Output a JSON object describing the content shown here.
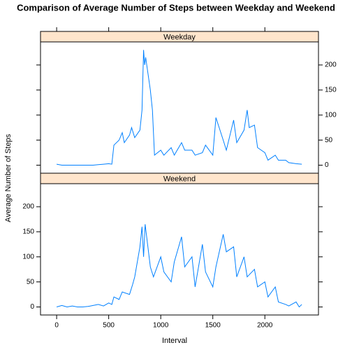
{
  "chart_data": {
    "type": "line",
    "title": "Comparison of Average Number of Steps between Weekday and Weekend",
    "x_label": "Interval",
    "y_label": "Average Number of Steps",
    "facets": true,
    "strip_color": "#ffe5cc",
    "xlim": [
      -155,
      2515
    ],
    "xticks": [
      0,
      500,
      1000,
      1500,
      2000
    ],
    "ylim": [
      -16,
      246
    ],
    "yticks": [
      0,
      50,
      100,
      150,
      200
    ],
    "series": [
      {
        "name": "Weekday",
        "color": "#0080ff",
        "x": [
          0,
          50,
          100,
          150,
          200,
          250,
          300,
          350,
          400,
          450,
          500,
          530,
          550,
          600,
          630,
          650,
          700,
          720,
          750,
          800,
          820,
          835,
          845,
          855,
          900,
          920,
          940,
          1000,
          1030,
          1100,
          1130,
          1200,
          1230,
          1300,
          1330,
          1400,
          1430,
          1500,
          1530,
          1600,
          1630,
          1700,
          1730,
          1800,
          1830,
          1850,
          1900,
          1930,
          2000,
          2030,
          2100,
          2130,
          2200,
          2230,
          2300,
          2355
        ],
        "values": [
          2,
          0,
          0,
          0,
          0,
          0,
          0,
          0,
          1,
          2,
          3,
          2,
          40,
          50,
          65,
          45,
          60,
          75,
          55,
          70,
          110,
          230,
          200,
          215,
          150,
          110,
          20,
          30,
          20,
          35,
          20,
          45,
          30,
          30,
          20,
          25,
          40,
          20,
          95,
          50,
          30,
          90,
          45,
          70,
          110,
          75,
          80,
          35,
          25,
          10,
          20,
          10,
          10,
          5,
          3,
          2
        ]
      },
      {
        "name": "Weekend",
        "color": "#0080ff",
        "x": [
          0,
          50,
          100,
          150,
          200,
          250,
          300,
          350,
          400,
          450,
          500,
          530,
          550,
          600,
          630,
          700,
          730,
          750,
          800,
          820,
          835,
          850,
          900,
          930,
          1000,
          1030,
          1100,
          1130,
          1200,
          1230,
          1300,
          1330,
          1400,
          1430,
          1500,
          1530,
          1600,
          1630,
          1700,
          1730,
          1800,
          1830,
          1900,
          1930,
          2000,
          2030,
          2100,
          2130,
          2200,
          2230,
          2300,
          2330,
          2355
        ],
        "values": [
          0,
          3,
          0,
          2,
          0,
          0,
          1,
          3,
          5,
          2,
          8,
          5,
          20,
          15,
          30,
          25,
          45,
          60,
          120,
          160,
          100,
          165,
          80,
          60,
          100,
          70,
          50,
          90,
          140,
          80,
          100,
          40,
          125,
          70,
          40,
          80,
          145,
          110,
          120,
          60,
          100,
          60,
          75,
          40,
          50,
          20,
          40,
          10,
          5,
          2,
          10,
          0,
          5
        ]
      }
    ]
  }
}
